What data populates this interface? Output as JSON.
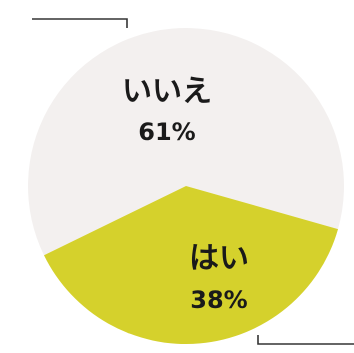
{
  "chart_data": {
    "type": "pie",
    "categories": [
      "いいえ",
      "はい"
    ],
    "values": [
      61,
      38
    ],
    "value_labels": [
      "61%",
      "38%"
    ],
    "colors": [
      "#f3f0ef",
      "#d5d12c"
    ],
    "legend": "none"
  }
}
